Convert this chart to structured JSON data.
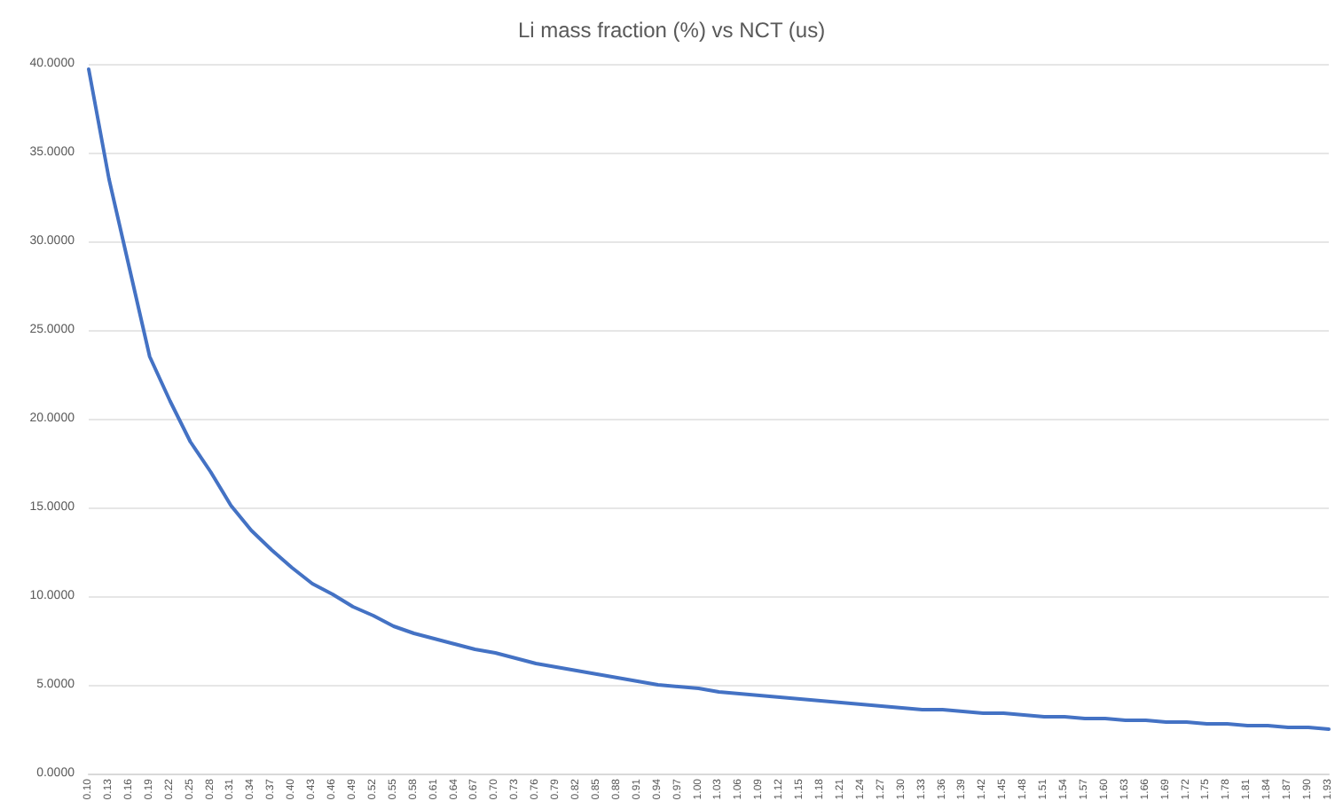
{
  "chart_data": {
    "type": "line",
    "title": "Li mass fraction (%) vs NCT (us)",
    "categories": [
      "0.10",
      "0.13",
      "0.16",
      "0.19",
      "0.22",
      "0.25",
      "0.28",
      "0.31",
      "0.34",
      "0.37",
      "0.40",
      "0.43",
      "0.46",
      "0.49",
      "0.52",
      "0.55",
      "0.58",
      "0.61",
      "0.64",
      "0.67",
      "0.70",
      "0.73",
      "0.76",
      "0.79",
      "0.82",
      "0.85",
      "0.88",
      "0.91",
      "0.94",
      "0.97",
      "1.00",
      "1.03",
      "1.06",
      "1.09",
      "1.12",
      "1.15",
      "1.18",
      "1.21",
      "1.24",
      "1.27",
      "1.30",
      "1.33",
      "1.36",
      "1.39",
      "1.42",
      "1.45",
      "1.48",
      "1.51",
      "1.54",
      "1.57",
      "1.60",
      "1.63",
      "1.66",
      "1.69",
      "1.72",
      "1.75",
      "1.78",
      "1.81",
      "1.84",
      "1.87",
      "1.90",
      "1.93"
    ],
    "series": [
      {
        "color": "#4472c4",
        "values": [
          39.7,
          33.5,
          28.5,
          23.5,
          21.0,
          18.7,
          17.0,
          15.1,
          13.7,
          12.6,
          11.6,
          10.7,
          10.1,
          9.4,
          8.9,
          8.3,
          7.9,
          7.6,
          7.3,
          7.0,
          6.8,
          6.5,
          6.2,
          6.0,
          5.8,
          5.6,
          5.4,
          5.2,
          5.0,
          4.9,
          4.8,
          4.6,
          4.5,
          4.4,
          4.3,
          4.2,
          4.1,
          4.0,
          3.9,
          3.8,
          3.7,
          3.6,
          3.6,
          3.5,
          3.4,
          3.4,
          3.3,
          3.2,
          3.2,
          3.1,
          3.1,
          3.0,
          3.0,
          2.9,
          2.9,
          2.8,
          2.8,
          2.7,
          2.7,
          2.6,
          2.6,
          2.5
        ]
      }
    ],
    "ylim": [
      0,
      40
    ],
    "yticks": [
      {
        "value": 0,
        "label": "0.0000"
      },
      {
        "value": 5,
        "label": "5.0000"
      },
      {
        "value": 10,
        "label": "10.0000"
      },
      {
        "value": 15,
        "label": "15.0000"
      },
      {
        "value": 20,
        "label": "20.0000"
      },
      {
        "value": 25,
        "label": "25.0000"
      },
      {
        "value": 30,
        "label": "30.0000"
      },
      {
        "value": 35,
        "label": "35.0000"
      },
      {
        "value": 40,
        "label": "40.0000"
      }
    ],
    "grid": "y",
    "marker": "none",
    "line_style": "solid"
  }
}
